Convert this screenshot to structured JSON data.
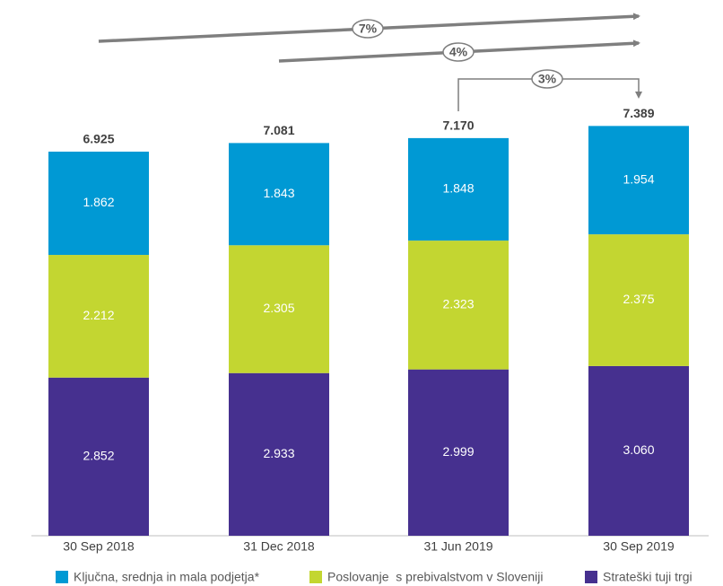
{
  "chart_data": {
    "type": "stacked_bar",
    "categories": [
      "30 Sep 2018",
      "31 Dec 2018",
      "31 Jun 2019",
      "30 Sep 2019"
    ],
    "series": [
      {
        "name": "Ključna, srednja in mala podjetja*",
        "color": "#0099d4",
        "values": [
          1.862,
          1.843,
          1.848,
          1.954
        ],
        "value_labels": [
          "1.862",
          "1.843",
          "1.848",
          "1.954"
        ]
      },
      {
        "name": "Poslovanje  s prebivalstvom v Sloveniji",
        "color": "#c3d631",
        "values": [
          2.212,
          2.305,
          2.323,
          2.375
        ],
        "value_labels": [
          "2.212",
          "2.305",
          "2.323",
          "2.375"
        ]
      },
      {
        "name": "Strateški tuji trgi",
        "color": "#46308f",
        "values": [
          2.852,
          2.933,
          2.999,
          3.06
        ],
        "value_labels": [
          "2.852",
          "2.933",
          "2.999",
          "3.060"
        ]
      }
    ],
    "totals": [
      6.925,
      7.081,
      7.17,
      7.389
    ],
    "total_labels": [
      "6.925",
      "7.081",
      "7.170",
      "7.389"
    ],
    "annotations": [
      "7%",
      "4%",
      "3%"
    ]
  }
}
